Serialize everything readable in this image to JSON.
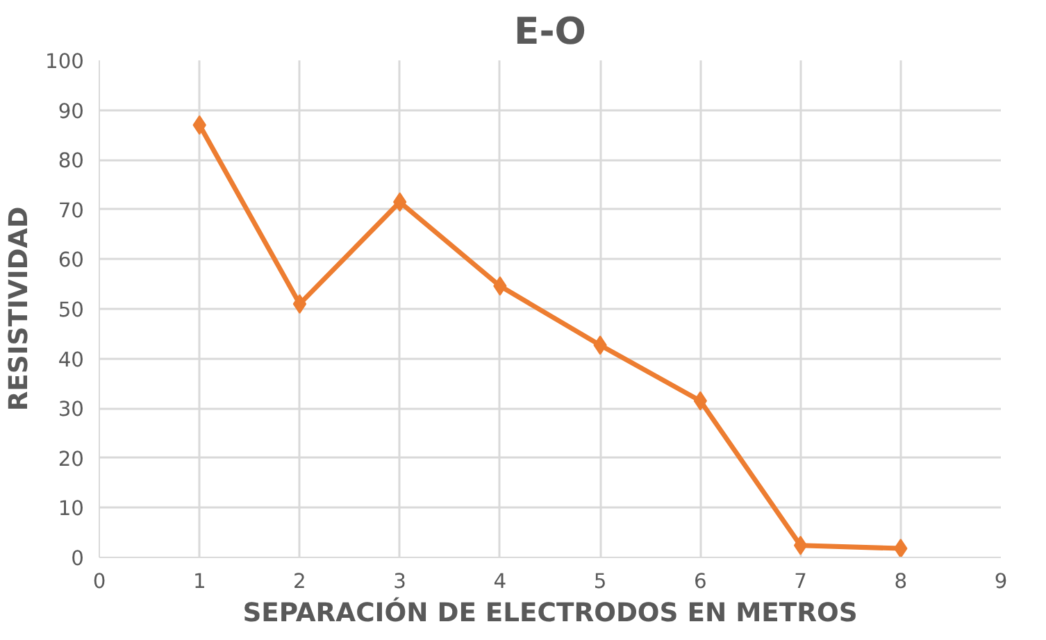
{
  "chart_data": {
    "type": "line",
    "title": "E-O",
    "xlabel": "SEPARACIÓN DE ELECTRODOS EN METROS",
    "ylabel": "RESISTIVIDAD",
    "x": [
      1,
      2,
      3,
      4,
      5,
      6,
      7,
      8
    ],
    "series": [
      {
        "color": "#ed7d31",
        "values": [
          87,
          51,
          71.5,
          54.6,
          42.7,
          31.5,
          2.4,
          1.8
        ]
      }
    ],
    "xlim": [
      0,
      9
    ],
    "xticks": [
      0,
      1,
      2,
      3,
      4,
      5,
      6,
      7,
      8,
      9
    ],
    "ylim": [
      0,
      100
    ],
    "yticks": [
      0,
      10,
      20,
      30,
      40,
      50,
      60,
      70,
      80,
      90,
      100
    ],
    "grid": true,
    "marker": "diamond",
    "line_style": "solid"
  }
}
